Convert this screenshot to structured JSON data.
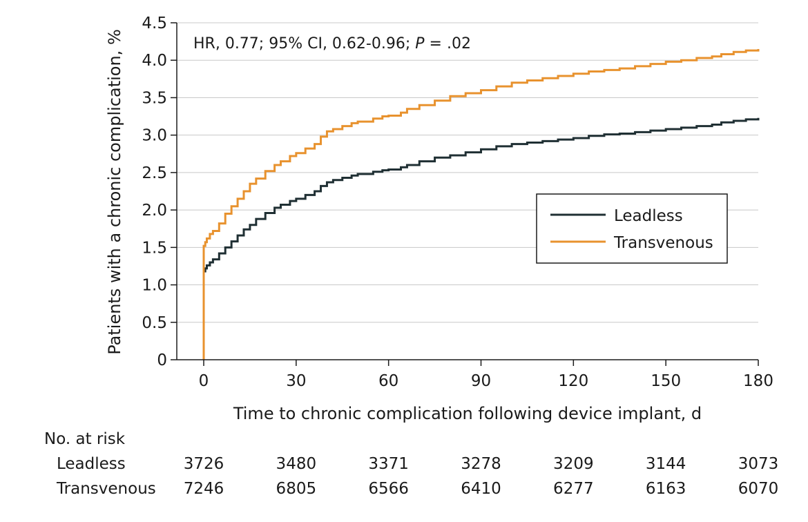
{
  "chart_data": {
    "type": "line",
    "title": "",
    "annotation": {
      "prefix": "HR, 0.77; 95% CI, 0.62-0.96; ",
      "p_label": "P",
      "p_value": " = .02"
    },
    "xlabel": "Time to chronic complication following device implant, d",
    "ylabel": "Patients with a chronic complication, %",
    "xlim": [
      0,
      180
    ],
    "ylim": [
      0,
      4.5
    ],
    "xticks": [
      0,
      30,
      60,
      90,
      120,
      150,
      180
    ],
    "yticks": [
      0,
      0.5,
      1.0,
      1.5,
      2.0,
      2.5,
      3.0,
      3.5,
      4.0,
      4.5
    ],
    "ytick_labels": [
      "0",
      "0.5",
      "1.0",
      "1.5",
      "2.0",
      "2.5",
      "3.0",
      "3.5",
      "4.0",
      "4.5"
    ],
    "grid": "horizontal",
    "legend_position": "right",
    "series": [
      {
        "name": "Leadless",
        "color": "#1f2f33",
        "x": [
          0,
          0,
          0.5,
          1,
          2,
          3,
          5,
          7,
          9,
          11,
          13,
          15,
          17,
          20,
          23,
          25,
          28,
          30,
          33,
          36,
          38,
          40,
          42,
          45,
          48,
          50,
          55,
          58,
          60,
          64,
          66,
          70,
          75,
          80,
          85,
          90,
          95,
          100,
          105,
          110,
          115,
          120,
          125,
          130,
          135,
          140,
          145,
          150,
          155,
          160,
          165,
          168,
          172,
          176,
          180
        ],
        "y": [
          0,
          1.18,
          1.22,
          1.26,
          1.3,
          1.34,
          1.42,
          1.5,
          1.58,
          1.66,
          1.74,
          1.8,
          1.88,
          1.96,
          2.03,
          2.07,
          2.12,
          2.15,
          2.2,
          2.25,
          2.32,
          2.37,
          2.4,
          2.43,
          2.46,
          2.48,
          2.51,
          2.53,
          2.54,
          2.57,
          2.6,
          2.65,
          2.7,
          2.73,
          2.77,
          2.81,
          2.85,
          2.88,
          2.9,
          2.92,
          2.94,
          2.96,
          2.99,
          3.01,
          3.02,
          3.04,
          3.06,
          3.08,
          3.1,
          3.12,
          3.14,
          3.17,
          3.19,
          3.21,
          3.23
        ]
      },
      {
        "name": "Transvenous",
        "color": "#e8922e",
        "x": [
          0,
          0,
          0.5,
          1,
          2,
          3,
          5,
          7,
          9,
          11,
          13,
          15,
          17,
          20,
          23,
          25,
          28,
          30,
          33,
          36,
          38,
          40,
          42,
          45,
          48,
          50,
          55,
          58,
          60,
          64,
          66,
          70,
          75,
          80,
          85,
          90,
          95,
          100,
          105,
          110,
          115,
          120,
          125,
          130,
          135,
          140,
          145,
          150,
          155,
          160,
          165,
          168,
          172,
          176,
          180
        ],
        "y": [
          0,
          1.52,
          1.57,
          1.62,
          1.68,
          1.72,
          1.82,
          1.95,
          2.05,
          2.15,
          2.25,
          2.35,
          2.42,
          2.52,
          2.6,
          2.65,
          2.72,
          2.76,
          2.82,
          2.88,
          2.98,
          3.05,
          3.08,
          3.12,
          3.16,
          3.18,
          3.22,
          3.25,
          3.26,
          3.3,
          3.35,
          3.4,
          3.46,
          3.52,
          3.56,
          3.6,
          3.65,
          3.7,
          3.73,
          3.76,
          3.79,
          3.82,
          3.85,
          3.87,
          3.89,
          3.92,
          3.95,
          3.98,
          4.0,
          4.03,
          4.05,
          4.08,
          4.11,
          4.13,
          4.15
        ]
      }
    ]
  },
  "risk_table": {
    "header": "No. at risk",
    "columns": [
      0,
      30,
      60,
      90,
      120,
      150,
      180
    ],
    "rows": [
      {
        "label": "Leadless",
        "values": [
          "3726",
          "3480",
          "3371",
          "3278",
          "3209",
          "3144",
          "3073"
        ]
      },
      {
        "label": "Transvenous",
        "values": [
          "7246",
          "6805",
          "6566",
          "6410",
          "6277",
          "6163",
          "6070"
        ]
      }
    ]
  }
}
